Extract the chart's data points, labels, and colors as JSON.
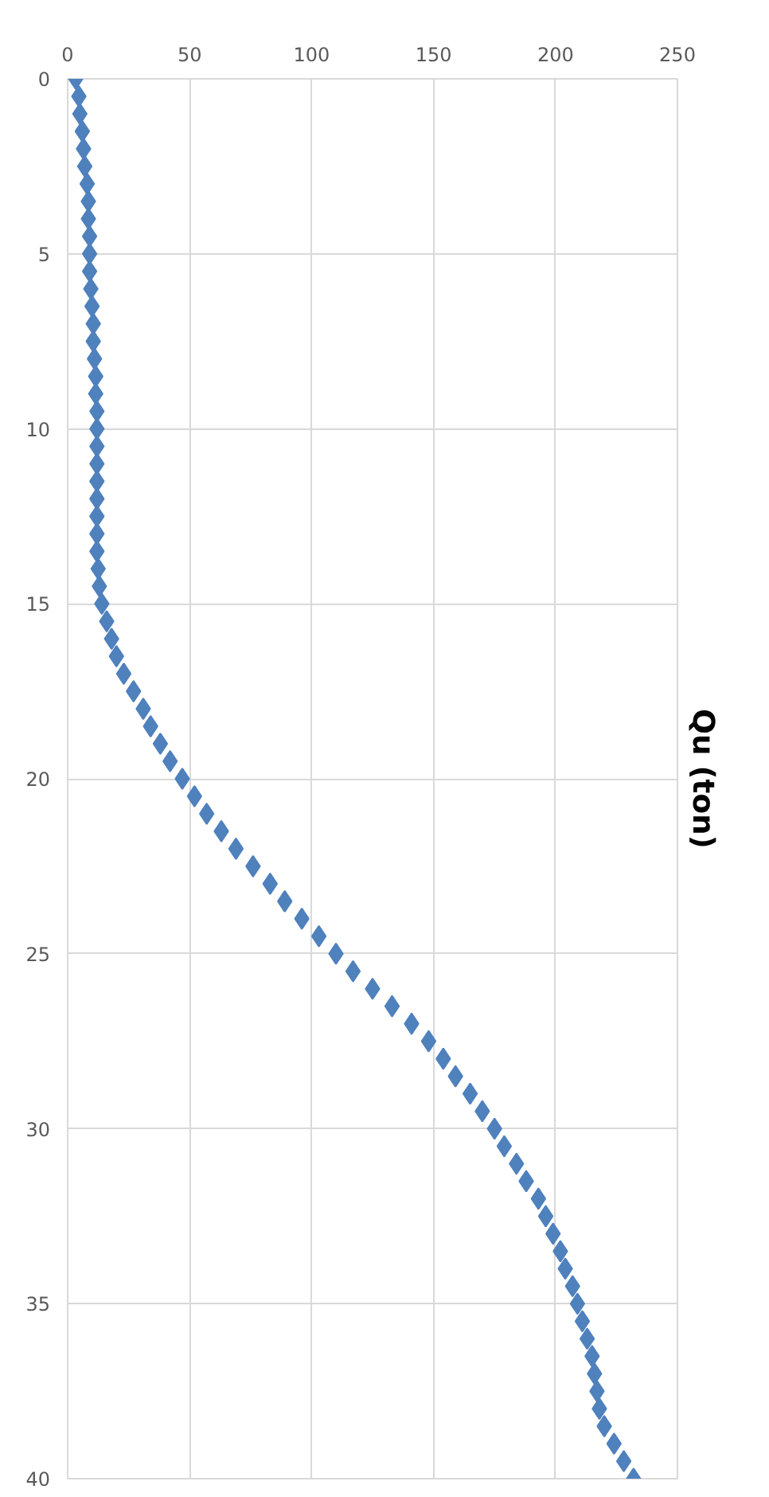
{
  "chart_data": {
    "type": "scatter",
    "y2label": "Qu (ton)",
    "marker": "diamond",
    "grid": true,
    "xlim": [
      0,
      250
    ],
    "xticks": [
      0,
      50,
      100,
      150,
      200,
      250
    ],
    "ylim": [
      40,
      0
    ],
    "yticks": [
      0,
      5,
      10,
      15,
      20,
      25,
      30,
      35,
      40
    ],
    "series": [
      {
        "color": "#4f81bd",
        "x": [
          3.3,
          4.6,
          5,
          6,
          6.5,
          7,
          8,
          8.5,
          8.5,
          9,
          9,
          9,
          9.5,
          10,
          10.5,
          10.5,
          11,
          11.5,
          11.5,
          12,
          12,
          12,
          12,
          12,
          12,
          12,
          12,
          12,
          12.5,
          13,
          14,
          16,
          18,
          20,
          23,
          27,
          31,
          34,
          38,
          42,
          47,
          52,
          57,
          63,
          69,
          76,
          83,
          89,
          96,
          103,
          110,
          117,
          125,
          133,
          141,
          148,
          154,
          159,
          165,
          170,
          175,
          179,
          184,
          188,
          193,
          196,
          199,
          202,
          204,
          207,
          209,
          211,
          213,
          215,
          216,
          217,
          218,
          220,
          224,
          228,
          232
        ],
        "values": [
          0,
          0.5,
          1,
          1.5,
          2,
          2.5,
          3,
          3.5,
          4,
          4.5,
          5,
          5.5,
          6,
          6.5,
          7,
          7.5,
          8,
          8.5,
          9,
          9.5,
          10,
          10.5,
          11,
          11.5,
          12,
          12.5,
          13,
          13.5,
          14,
          14.5,
          15,
          15.5,
          16,
          16.5,
          17,
          17.5,
          18,
          18.5,
          19,
          19.5,
          20,
          20.5,
          21,
          21.5,
          22,
          22.5,
          23,
          23.5,
          24,
          24.5,
          25,
          25.5,
          26,
          26.5,
          27,
          27.5,
          28,
          28.5,
          29,
          29.5,
          30,
          30.5,
          31,
          31.5,
          32,
          32.5,
          33,
          33.5,
          34,
          34.5,
          35,
          35.5,
          36,
          36.5,
          37,
          37.5,
          38,
          38.5,
          39,
          39.5,
          40
        ]
      }
    ]
  }
}
